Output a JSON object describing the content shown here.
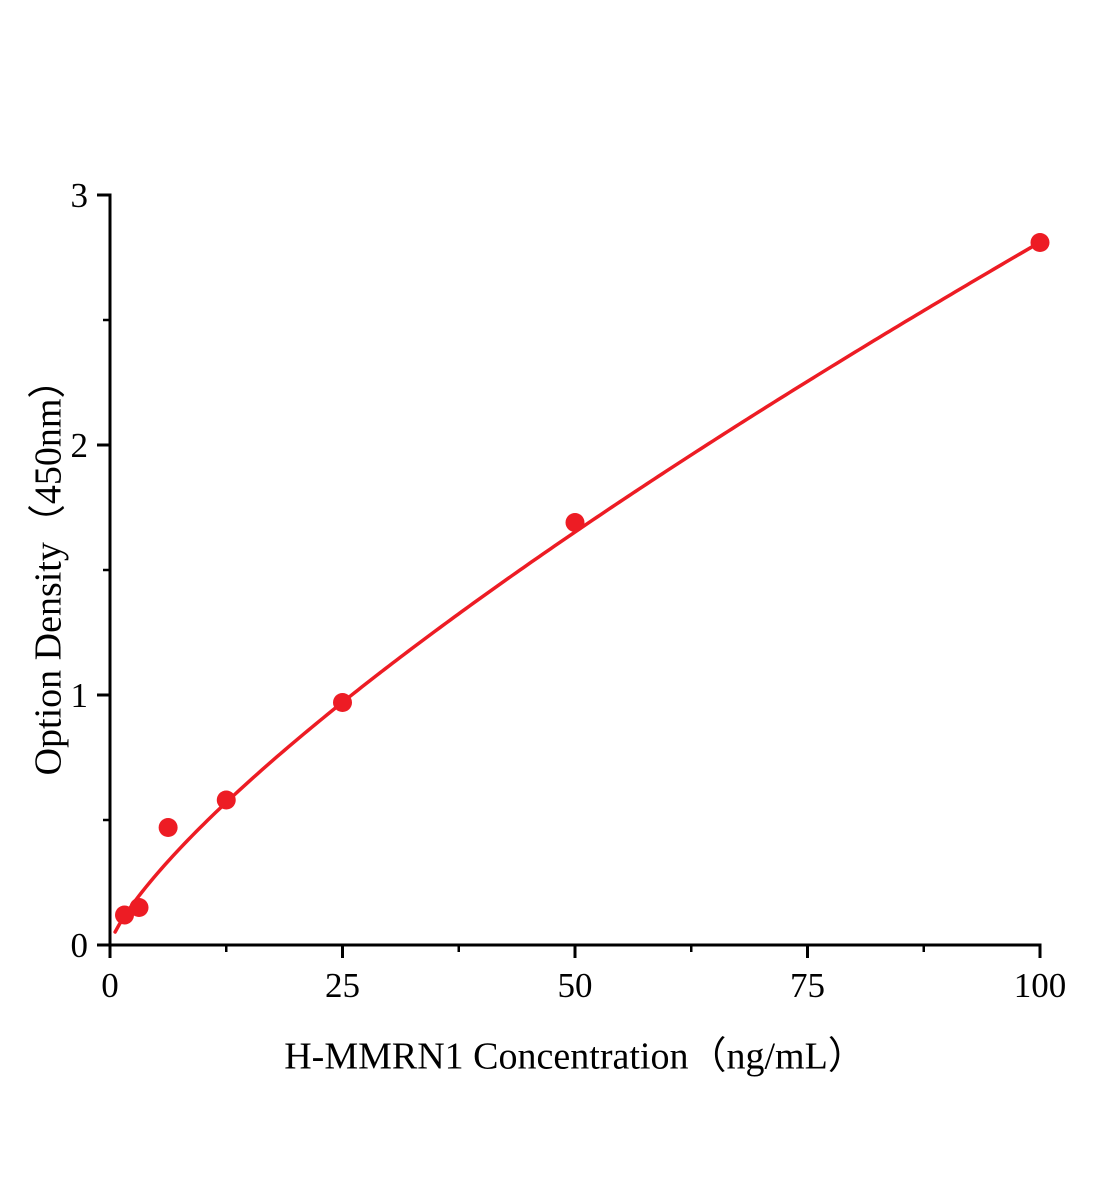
{
  "page": {
    "background": "#ffffff"
  },
  "chart_data": {
    "type": "scatter",
    "title": "",
    "xlabel": "H-MMRN1 Concentration（ng/mL）",
    "ylabel": "Option Density（450nm）",
    "x": [
      1.56,
      3.12,
      6.25,
      12.5,
      25,
      50,
      100
    ],
    "y": [
      0.12,
      0.15,
      0.47,
      0.58,
      0.97,
      1.69,
      2.81
    ],
    "xlim": [
      0,
      100
    ],
    "ylim": [
      0,
      3
    ],
    "x_ticks": [
      0,
      25,
      50,
      75,
      100
    ],
    "y_ticks": [
      0,
      1,
      2,
      3
    ],
    "x_minor_step": 12.5,
    "y_minor_step": 0.5,
    "grid": false,
    "legend": "none",
    "series_color": "#ed1c24",
    "axis_color": "#000000",
    "marker_radius": 9.5,
    "fit": {
      "type": "power",
      "a": 0.0822,
      "b": 0.767,
      "x_start": 0.55,
      "x_end": 100
    }
  }
}
